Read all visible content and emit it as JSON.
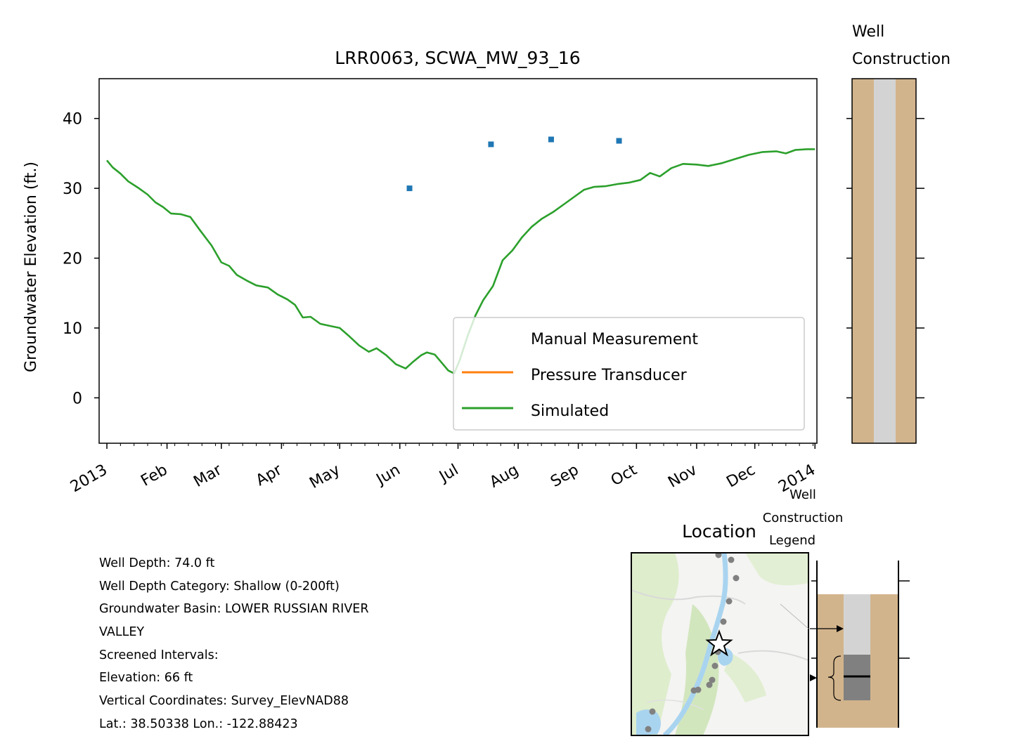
{
  "chart_data": {
    "type": "line",
    "title": "LRR0063, SCWA_MW_93_16",
    "ylabel": "Groundwater Elevation (ft.)",
    "xlabel": "",
    "ylim": [
      -6.5,
      45.7
    ],
    "xlim": [
      "2012-12-28",
      "2014-01-02"
    ],
    "yticks": [
      0,
      10,
      20,
      30,
      40
    ],
    "xticks": [
      {
        "date": "2013-01-01",
        "label": "2013"
      },
      {
        "date": "2013-02-01",
        "label": "Feb"
      },
      {
        "date": "2013-03-01",
        "label": "Mar"
      },
      {
        "date": "2013-04-01",
        "label": "Apr"
      },
      {
        "date": "2013-05-01",
        "label": "May"
      },
      {
        "date": "2013-06-01",
        "label": "Jun"
      },
      {
        "date": "2013-07-01",
        "label": "Jul"
      },
      {
        "date": "2013-08-01",
        "label": "Aug"
      },
      {
        "date": "2013-09-01",
        "label": "Sep"
      },
      {
        "date": "2013-10-01",
        "label": "Oct"
      },
      {
        "date": "2013-11-01",
        "label": "Nov"
      },
      {
        "date": "2013-12-01",
        "label": "Dec"
      },
      {
        "date": "2014-01-01",
        "label": "2014"
      }
    ],
    "grid": false,
    "legend": {
      "position": "lower right",
      "entries": [
        {
          "label": "Manual Measurement",
          "color": ""
        },
        {
          "label": "Pressure Transducer",
          "color": "#ff7f0e"
        },
        {
          "label": "Simulated",
          "color": "#2ca02c"
        }
      ]
    },
    "series": [
      {
        "name": "Manual Measurement",
        "type": "scatter",
        "color": "#1f77b4",
        "points": [
          {
            "x": "2013-06-06",
            "y": 30.0
          },
          {
            "x": "2013-07-18",
            "y": 36.3
          },
          {
            "x": "2013-08-18",
            "y": 37.0
          },
          {
            "x": "2013-09-22",
            "y": 36.8
          }
        ]
      },
      {
        "name": "Simulated",
        "type": "line",
        "color": "#2ca02c",
        "points": [
          {
            "x": "2013-01-01",
            "y": 34.0
          },
          {
            "x": "2013-01-04",
            "y": 33.0
          },
          {
            "x": "2013-01-08",
            "y": 32.1
          },
          {
            "x": "2013-01-12",
            "y": 31.0
          },
          {
            "x": "2013-01-17",
            "y": 30.1
          },
          {
            "x": "2013-01-22",
            "y": 29.1
          },
          {
            "x": "2013-01-26",
            "y": 28.0
          },
          {
            "x": "2013-01-30",
            "y": 27.3
          },
          {
            "x": "2013-02-03",
            "y": 26.4
          },
          {
            "x": "2013-02-08",
            "y": 26.3
          },
          {
            "x": "2013-02-13",
            "y": 25.9
          },
          {
            "x": "2013-02-18",
            "y": 24.0
          },
          {
            "x": "2013-02-24",
            "y": 21.8
          },
          {
            "x": "2013-03-01",
            "y": 19.4
          },
          {
            "x": "2013-03-05",
            "y": 18.9
          },
          {
            "x": "2013-03-09",
            "y": 17.6
          },
          {
            "x": "2013-03-14",
            "y": 16.8
          },
          {
            "x": "2013-03-19",
            "y": 16.1
          },
          {
            "x": "2013-03-25",
            "y": 15.8
          },
          {
            "x": "2013-03-30",
            "y": 14.8
          },
          {
            "x": "2013-04-04",
            "y": 14.1
          },
          {
            "x": "2013-04-08",
            "y": 13.3
          },
          {
            "x": "2013-04-12",
            "y": 11.5
          },
          {
            "x": "2013-04-16",
            "y": 11.6
          },
          {
            "x": "2013-04-21",
            "y": 10.6
          },
          {
            "x": "2013-04-26",
            "y": 10.3
          },
          {
            "x": "2013-05-01",
            "y": 10.0
          },
          {
            "x": "2013-05-06",
            "y": 8.8
          },
          {
            "x": "2013-05-11",
            "y": 7.5
          },
          {
            "x": "2013-05-16",
            "y": 6.6
          },
          {
            "x": "2013-05-20",
            "y": 7.1
          },
          {
            "x": "2013-05-25",
            "y": 6.1
          },
          {
            "x": "2013-05-30",
            "y": 4.8
          },
          {
            "x": "2013-06-04",
            "y": 4.2
          },
          {
            "x": "2013-06-08",
            "y": 5.2
          },
          {
            "x": "2013-06-12",
            "y": 6.1
          },
          {
            "x": "2013-06-15",
            "y": 6.5
          },
          {
            "x": "2013-06-19",
            "y": 6.2
          },
          {
            "x": "2013-06-23",
            "y": 4.9
          },
          {
            "x": "2013-06-26",
            "y": 3.9
          },
          {
            "x": "2013-06-29",
            "y": 3.5
          },
          {
            "x": "2013-07-02",
            "y": 5.5
          },
          {
            "x": "2013-07-06",
            "y": 8.9
          },
          {
            "x": "2013-07-10",
            "y": 11.8
          },
          {
            "x": "2013-07-14",
            "y": 14.0
          },
          {
            "x": "2013-07-19",
            "y": 16.0
          },
          {
            "x": "2013-07-24",
            "y": 19.7
          },
          {
            "x": "2013-07-29",
            "y": 21.1
          },
          {
            "x": "2013-08-03",
            "y": 23.0
          },
          {
            "x": "2013-08-08",
            "y": 24.5
          },
          {
            "x": "2013-08-13",
            "y": 25.6
          },
          {
            "x": "2013-08-19",
            "y": 26.6
          },
          {
            "x": "2013-08-25",
            "y": 27.8
          },
          {
            "x": "2013-08-30",
            "y": 28.8
          },
          {
            "x": "2013-09-04",
            "y": 29.8
          },
          {
            "x": "2013-09-09",
            "y": 30.2
          },
          {
            "x": "2013-09-15",
            "y": 30.3
          },
          {
            "x": "2013-09-21",
            "y": 30.6
          },
          {
            "x": "2013-09-27",
            "y": 30.8
          },
          {
            "x": "2013-10-03",
            "y": 31.2
          },
          {
            "x": "2013-10-08",
            "y": 32.2
          },
          {
            "x": "2013-10-13",
            "y": 31.7
          },
          {
            "x": "2013-10-19",
            "y": 32.9
          },
          {
            "x": "2013-10-25",
            "y": 33.5
          },
          {
            "x": "2013-11-01",
            "y": 33.4
          },
          {
            "x": "2013-11-07",
            "y": 33.2
          },
          {
            "x": "2013-11-14",
            "y": 33.6
          },
          {
            "x": "2013-11-21",
            "y": 34.2
          },
          {
            "x": "2013-11-28",
            "y": 34.8
          },
          {
            "x": "2013-12-05",
            "y": 35.2
          },
          {
            "x": "2013-12-12",
            "y": 35.3
          },
          {
            "x": "2013-12-17",
            "y": 35.0
          },
          {
            "x": "2013-12-22",
            "y": 35.5
          },
          {
            "x": "2013-12-28",
            "y": 35.6
          },
          {
            "x": "2014-01-01",
            "y": 35.6
          }
        ]
      }
    ]
  },
  "well_panel": {
    "title_line1": "Well",
    "title_line2": "Construction"
  },
  "location_panel": {
    "title": "Location"
  },
  "legend_panel": {
    "line1": "Well",
    "line2": "Construction",
    "line3": "Legend"
  },
  "info": {
    "lines": [
      "Well Depth: 74.0 ft",
      "Well Depth Category: Shallow (0-200ft)",
      "Groundwater Basin: LOWER RUSSIAN RIVER",
      "VALLEY",
      "Screened Intervals:",
      "Elevation: 66 ft",
      "Vertical Coordinates: Survey_ElevNAD88",
      "Lat.: 38.50338 Lon.: -122.88423"
    ]
  },
  "colors": {
    "casing": "#d2b48c",
    "bore": "#d3d3d3",
    "screen": "#808080",
    "water": "#b3d9f2",
    "terrain": "#dcecc8"
  }
}
